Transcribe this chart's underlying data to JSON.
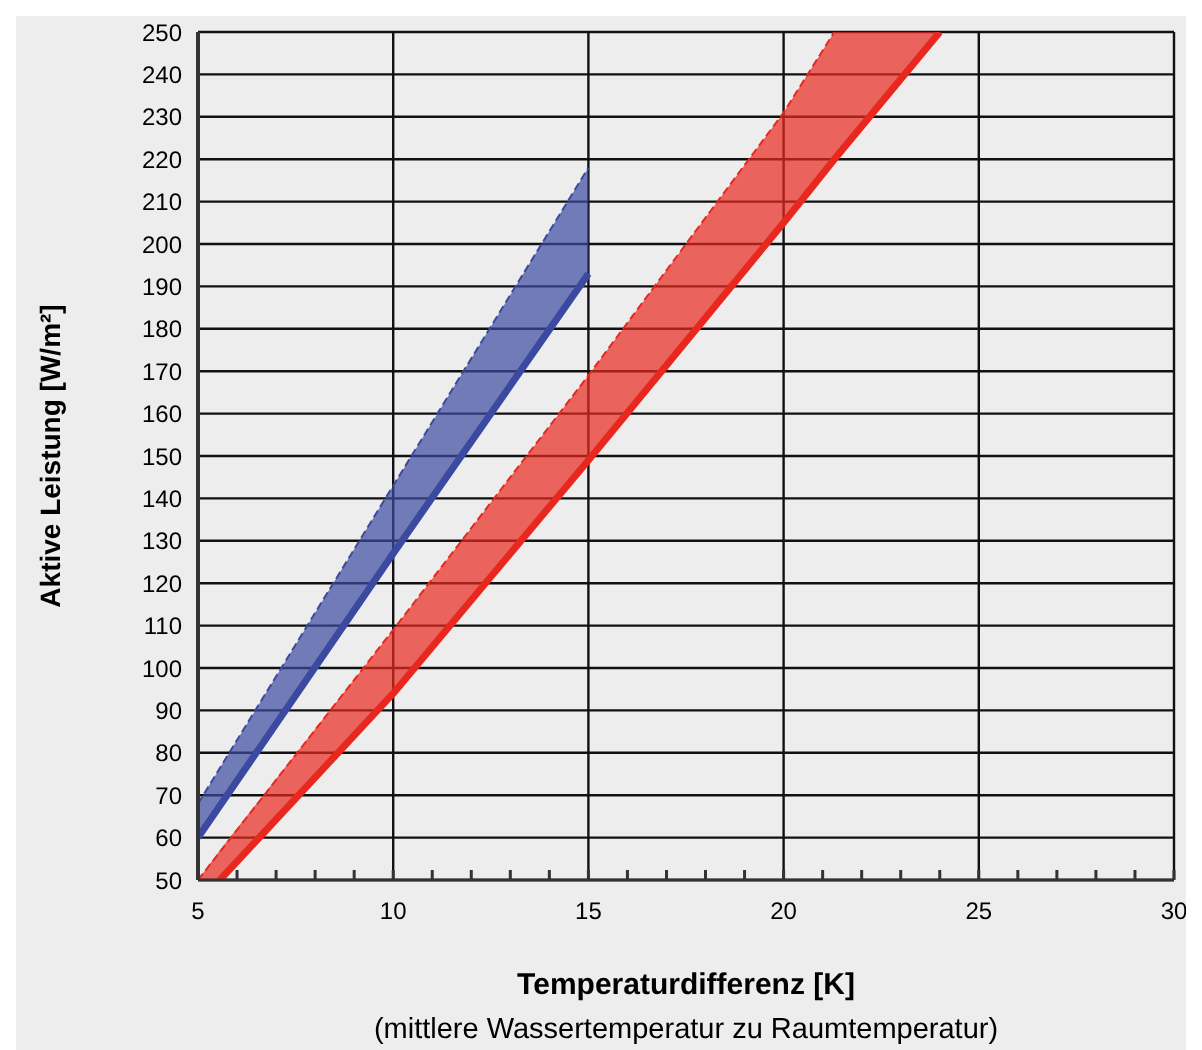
{
  "chart_data": {
    "type": "line",
    "xlabel": "Temperaturdifferenz [K]",
    "ylabel": "Aktive Leistung [W/m²]",
    "annotations": [
      "(mittlere Wassertemperatur zu Raumtemperatur)"
    ],
    "series": [
      {
        "color": "#3b4aa0",
        "line_style": "solid",
        "x": [
          5,
          10,
          15
        ],
        "values": [
          60,
          127,
          193
        ],
        "lower": [
          60,
          127,
          193
        ],
        "upper": [
          68,
          143,
          218
        ]
      },
      {
        "color": "#3b4aa0",
        "line_style": "dashed",
        "x": [
          5,
          10,
          15
        ],
        "values": [
          68,
          143,
          218
        ]
      },
      {
        "color": "#e8281e",
        "line_style": "solid",
        "x": [
          5,
          5.56,
          10,
          15,
          20,
          21.3,
          24
        ],
        "values": [
          null,
          50,
          94,
          149,
          205,
          220,
          250
        ],
        "lower": [
          50,
          50,
          94,
          149,
          205,
          220,
          250
        ],
        "upper": [
          50,
          57,
          109,
          169,
          231,
          250,
          250
        ]
      },
      {
        "color": "#e8281e",
        "line_style": "dashed",
        "x": [
          5,
          10,
          15,
          20,
          21.3
        ],
        "values": [
          50,
          109,
          169,
          231,
          250
        ]
      }
    ],
    "xlim": [
      5,
      30
    ],
    "xticks": [
      5,
      {
        "value": 6,
        "label": null
      },
      {
        "value": 7,
        "label": null
      },
      {
        "value": 8,
        "label": null
      },
      {
        "value": 9,
        "label": null
      },
      10,
      {
        "value": 11,
        "label": null
      },
      {
        "value": 12,
        "label": null
      },
      {
        "value": 13,
        "label": null
      },
      {
        "value": 14,
        "label": null
      },
      15,
      {
        "value": 16,
        "label": null
      },
      {
        "value": 17,
        "label": null
      },
      {
        "value": 18,
        "label": null
      },
      {
        "value": 19,
        "label": null
      },
      20,
      {
        "value": 21,
        "label": null
      },
      {
        "value": 22,
        "label": null
      },
      {
        "value": 23,
        "label": null
      },
      {
        "value": 24,
        "label": null
      },
      25,
      {
        "value": 26,
        "label": null
      },
      {
        "value": 27,
        "label": null
      },
      {
        "value": 28,
        "label": null
      },
      {
        "value": 29,
        "label": null
      },
      30
    ],
    "ylim": [
      50,
      250
    ],
    "yticks": [
      50,
      60,
      70,
      80,
      90,
      100,
      110,
      120,
      130,
      140,
      150,
      160,
      170,
      180,
      190,
      200,
      210,
      220,
      230,
      240,
      250
    ],
    "grid": true,
    "marker": "none"
  }
}
